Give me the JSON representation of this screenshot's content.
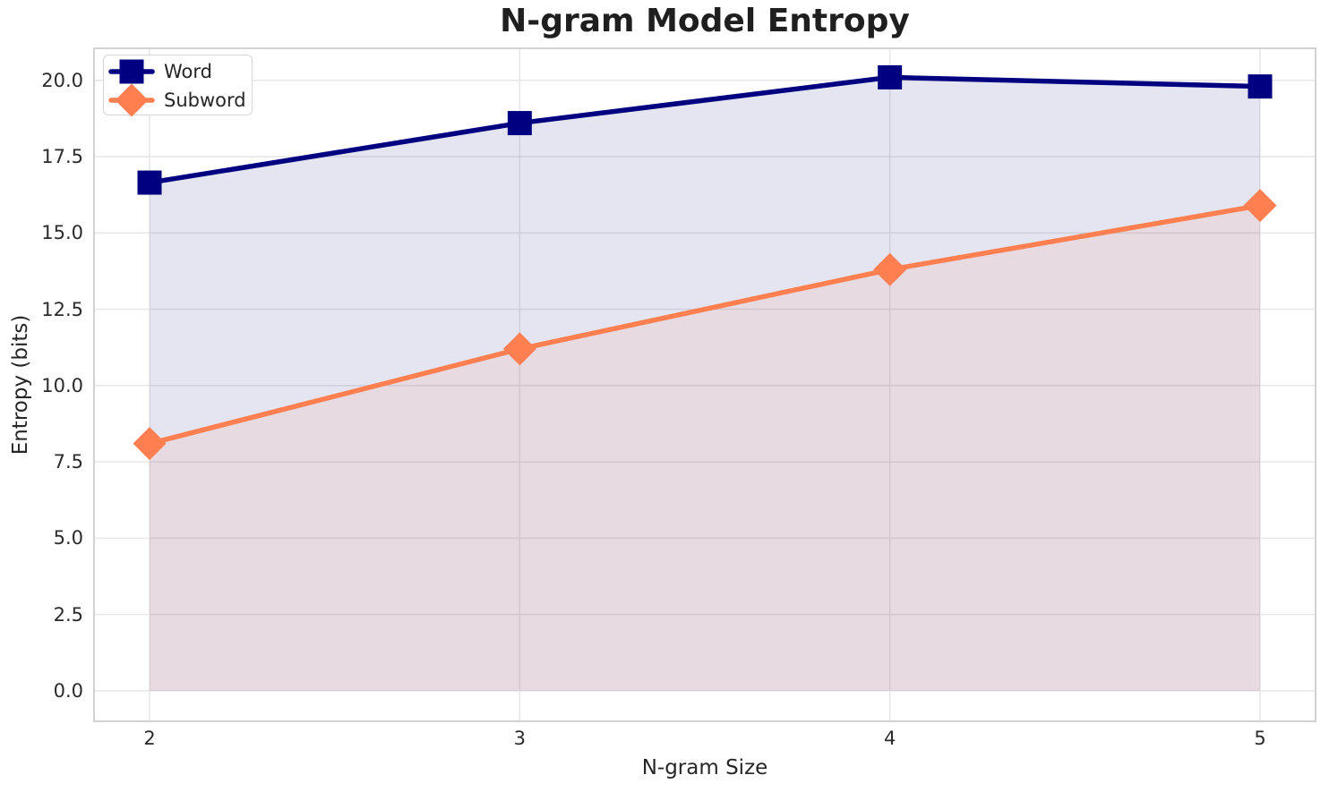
{
  "chart_data": {
    "type": "line",
    "title": "N-gram Model Entropy",
    "xlabel": "N-gram Size",
    "ylabel": "Entropy (bits)",
    "x": [
      2,
      3,
      4,
      5
    ],
    "series": [
      {
        "name": "Word",
        "values": [
          16.65,
          18.6,
          20.1,
          19.8
        ],
        "color": "#000080",
        "fill": "rgba(0,0,128,0.10)",
        "marker": "square"
      },
      {
        "name": "Subword",
        "values": [
          8.1,
          11.2,
          13.8,
          15.9
        ],
        "color": "#FF7F50",
        "fill": "rgba(255,127,80,0.10)",
        "marker": "diamond"
      }
    ],
    "xticks": [
      "2",
      "3",
      "4",
      "5"
    ],
    "xtick_values": [
      2,
      3,
      4,
      5
    ],
    "yticks": [
      "0.0",
      "2.5",
      "5.0",
      "7.5",
      "10.0",
      "12.5",
      "15.0",
      "17.5",
      "20.0"
    ],
    "ytick_values": [
      0,
      2.5,
      5,
      7.5,
      10,
      12.5,
      15,
      17.5,
      20
    ],
    "xlim": [
      1.85,
      5.15
    ],
    "ylim": [
      -1.0,
      21.05
    ],
    "grid": true,
    "fill_to_zero": true,
    "legend_position": "upper left"
  },
  "colors": {
    "word": "#000080",
    "subword": "#FF7F50",
    "grid": "#e8e8e8",
    "spine": "#d2d2d2",
    "text": "#262626",
    "background": "#ffffff"
  }
}
